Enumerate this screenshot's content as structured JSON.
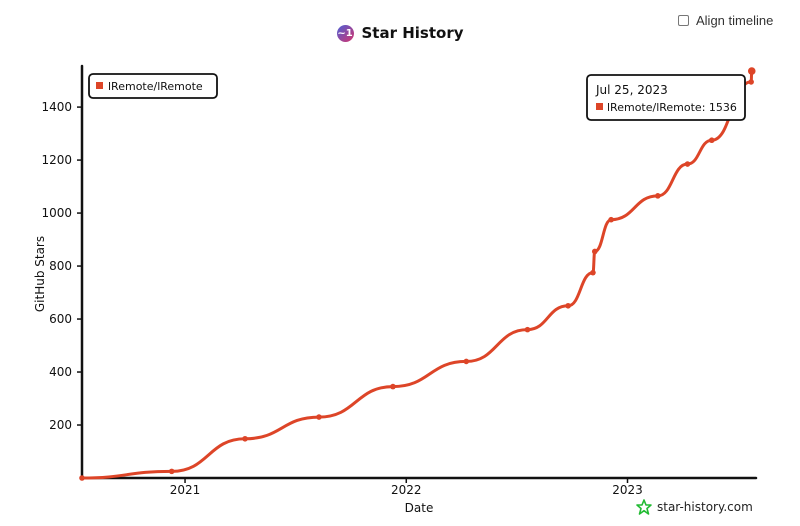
{
  "header": {
    "title": "Star History",
    "logo_glyph": "~1",
    "align_timeline_label": "Align timeline",
    "align_timeline_checked": false
  },
  "watermark": {
    "text": "star-history.com"
  },
  "colors": {
    "series": "#dd4528",
    "axis": "#111111",
    "accent_watermark": "#22bb33"
  },
  "tooltip": {
    "date": "Jul 25, 2023",
    "label": "lRemote/lRemote: 1536"
  },
  "chart_data": {
    "type": "line",
    "title": "Star History",
    "xlabel": "Date",
    "ylabel": "GitHub Stars",
    "x_type": "date",
    "xlim": [
      "2020-07-15",
      "2023-08-01"
    ],
    "ylim": [
      0,
      1540
    ],
    "yticks": [
      200,
      400,
      600,
      800,
      1000,
      1200,
      1400
    ],
    "xticks": [
      {
        "label": "2021",
        "date": "2021-01-01"
      },
      {
        "label": "2022",
        "date": "2022-01-01"
      },
      {
        "label": "2023",
        "date": "2023-01-01"
      }
    ],
    "legend": {
      "placement": "top-left",
      "entries": [
        "lRemote/lRemote"
      ]
    },
    "grid": false,
    "series": [
      {
        "name": "lRemote/lRemote",
        "points": [
          {
            "x": "2020-07-15",
            "y": 0
          },
          {
            "x": "2020-12-10",
            "y": 25
          },
          {
            "x": "2021-04-10",
            "y": 148
          },
          {
            "x": "2021-08-10",
            "y": 230
          },
          {
            "x": "2021-12-10",
            "y": 345
          },
          {
            "x": "2022-04-10",
            "y": 440
          },
          {
            "x": "2022-07-20",
            "y": 560
          },
          {
            "x": "2022-09-25",
            "y": 650
          },
          {
            "x": "2022-11-05",
            "y": 775
          },
          {
            "x": "2022-11-08",
            "y": 855
          },
          {
            "x": "2022-12-05",
            "y": 975
          },
          {
            "x": "2023-02-20",
            "y": 1065
          },
          {
            "x": "2023-04-10",
            "y": 1185
          },
          {
            "x": "2023-05-20",
            "y": 1275
          },
          {
            "x": "2023-07-24",
            "y": 1495
          },
          {
            "x": "2023-07-25",
            "y": 1536
          }
        ]
      }
    ]
  }
}
